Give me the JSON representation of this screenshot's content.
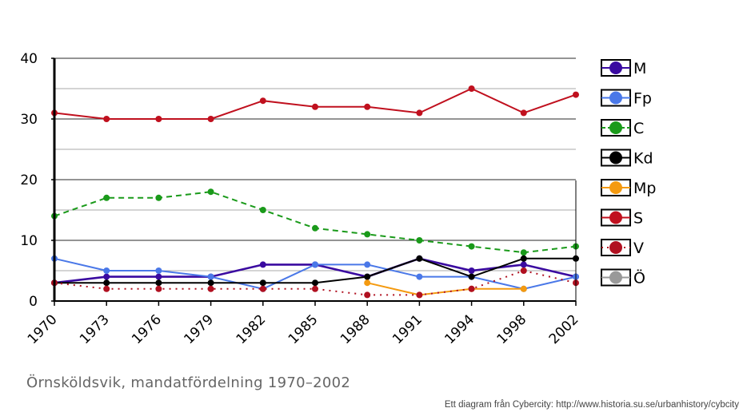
{
  "caption": "Örnsköldsvik, mandatfördelning 1970–2002",
  "credit": "Ett diagram från Cybercity: http://www.historia.su.se/urbanhistory/cybcity",
  "chart_data": {
    "type": "line",
    "title": "Örnsköldsvik, mandatfördelning 1970–2002",
    "xlabel": "",
    "ylabel": "",
    "x": [
      "1970",
      "1973",
      "1976",
      "1979",
      "1982",
      "1985",
      "1988",
      "1991",
      "1994",
      "1998",
      "2002"
    ],
    "ylim": [
      0,
      40
    ],
    "yticks": [
      0,
      10,
      20,
      30,
      40
    ],
    "grid": true,
    "legend_position": "right",
    "series": [
      {
        "name": "M",
        "color": "#3a0aa0",
        "style": "solid",
        "values": [
          3,
          4,
          4,
          4,
          6,
          6,
          4,
          7,
          5,
          6,
          4
        ]
      },
      {
        "name": "Fp",
        "color": "#4a78e8",
        "style": "solid",
        "values": [
          7,
          5,
          5,
          4,
          2,
          6,
          6,
          4,
          4,
          2,
          4
        ]
      },
      {
        "name": "C",
        "color": "#1a9a1a",
        "style": "dashed",
        "values": [
          14,
          17,
          17,
          18,
          15,
          12,
          11,
          10,
          9,
          8,
          9
        ]
      },
      {
        "name": "Kd",
        "color": "#000000",
        "style": "solid",
        "values": [
          3,
          3,
          3,
          3,
          3,
          3,
          4,
          7,
          4,
          7,
          7
        ]
      },
      {
        "name": "Mp",
        "color": "#f49a10",
        "style": "solid",
        "values": [
          null,
          null,
          null,
          null,
          null,
          null,
          3,
          1,
          2,
          2,
          null
        ]
      },
      {
        "name": "S",
        "color": "#c0101e",
        "style": "solid",
        "values": [
          31,
          30,
          30,
          30,
          33,
          32,
          32,
          31,
          35,
          31,
          34
        ]
      },
      {
        "name": "V",
        "color": "#b01020",
        "style": "dotted",
        "values": [
          3,
          2,
          2,
          2,
          2,
          2,
          1,
          1,
          2,
          5,
          3
        ]
      },
      {
        "name": "Ö",
        "color": "#999999",
        "style": "solid",
        "values": [
          null,
          null,
          null,
          null,
          null,
          null,
          null,
          null,
          null,
          null,
          null
        ]
      }
    ]
  }
}
